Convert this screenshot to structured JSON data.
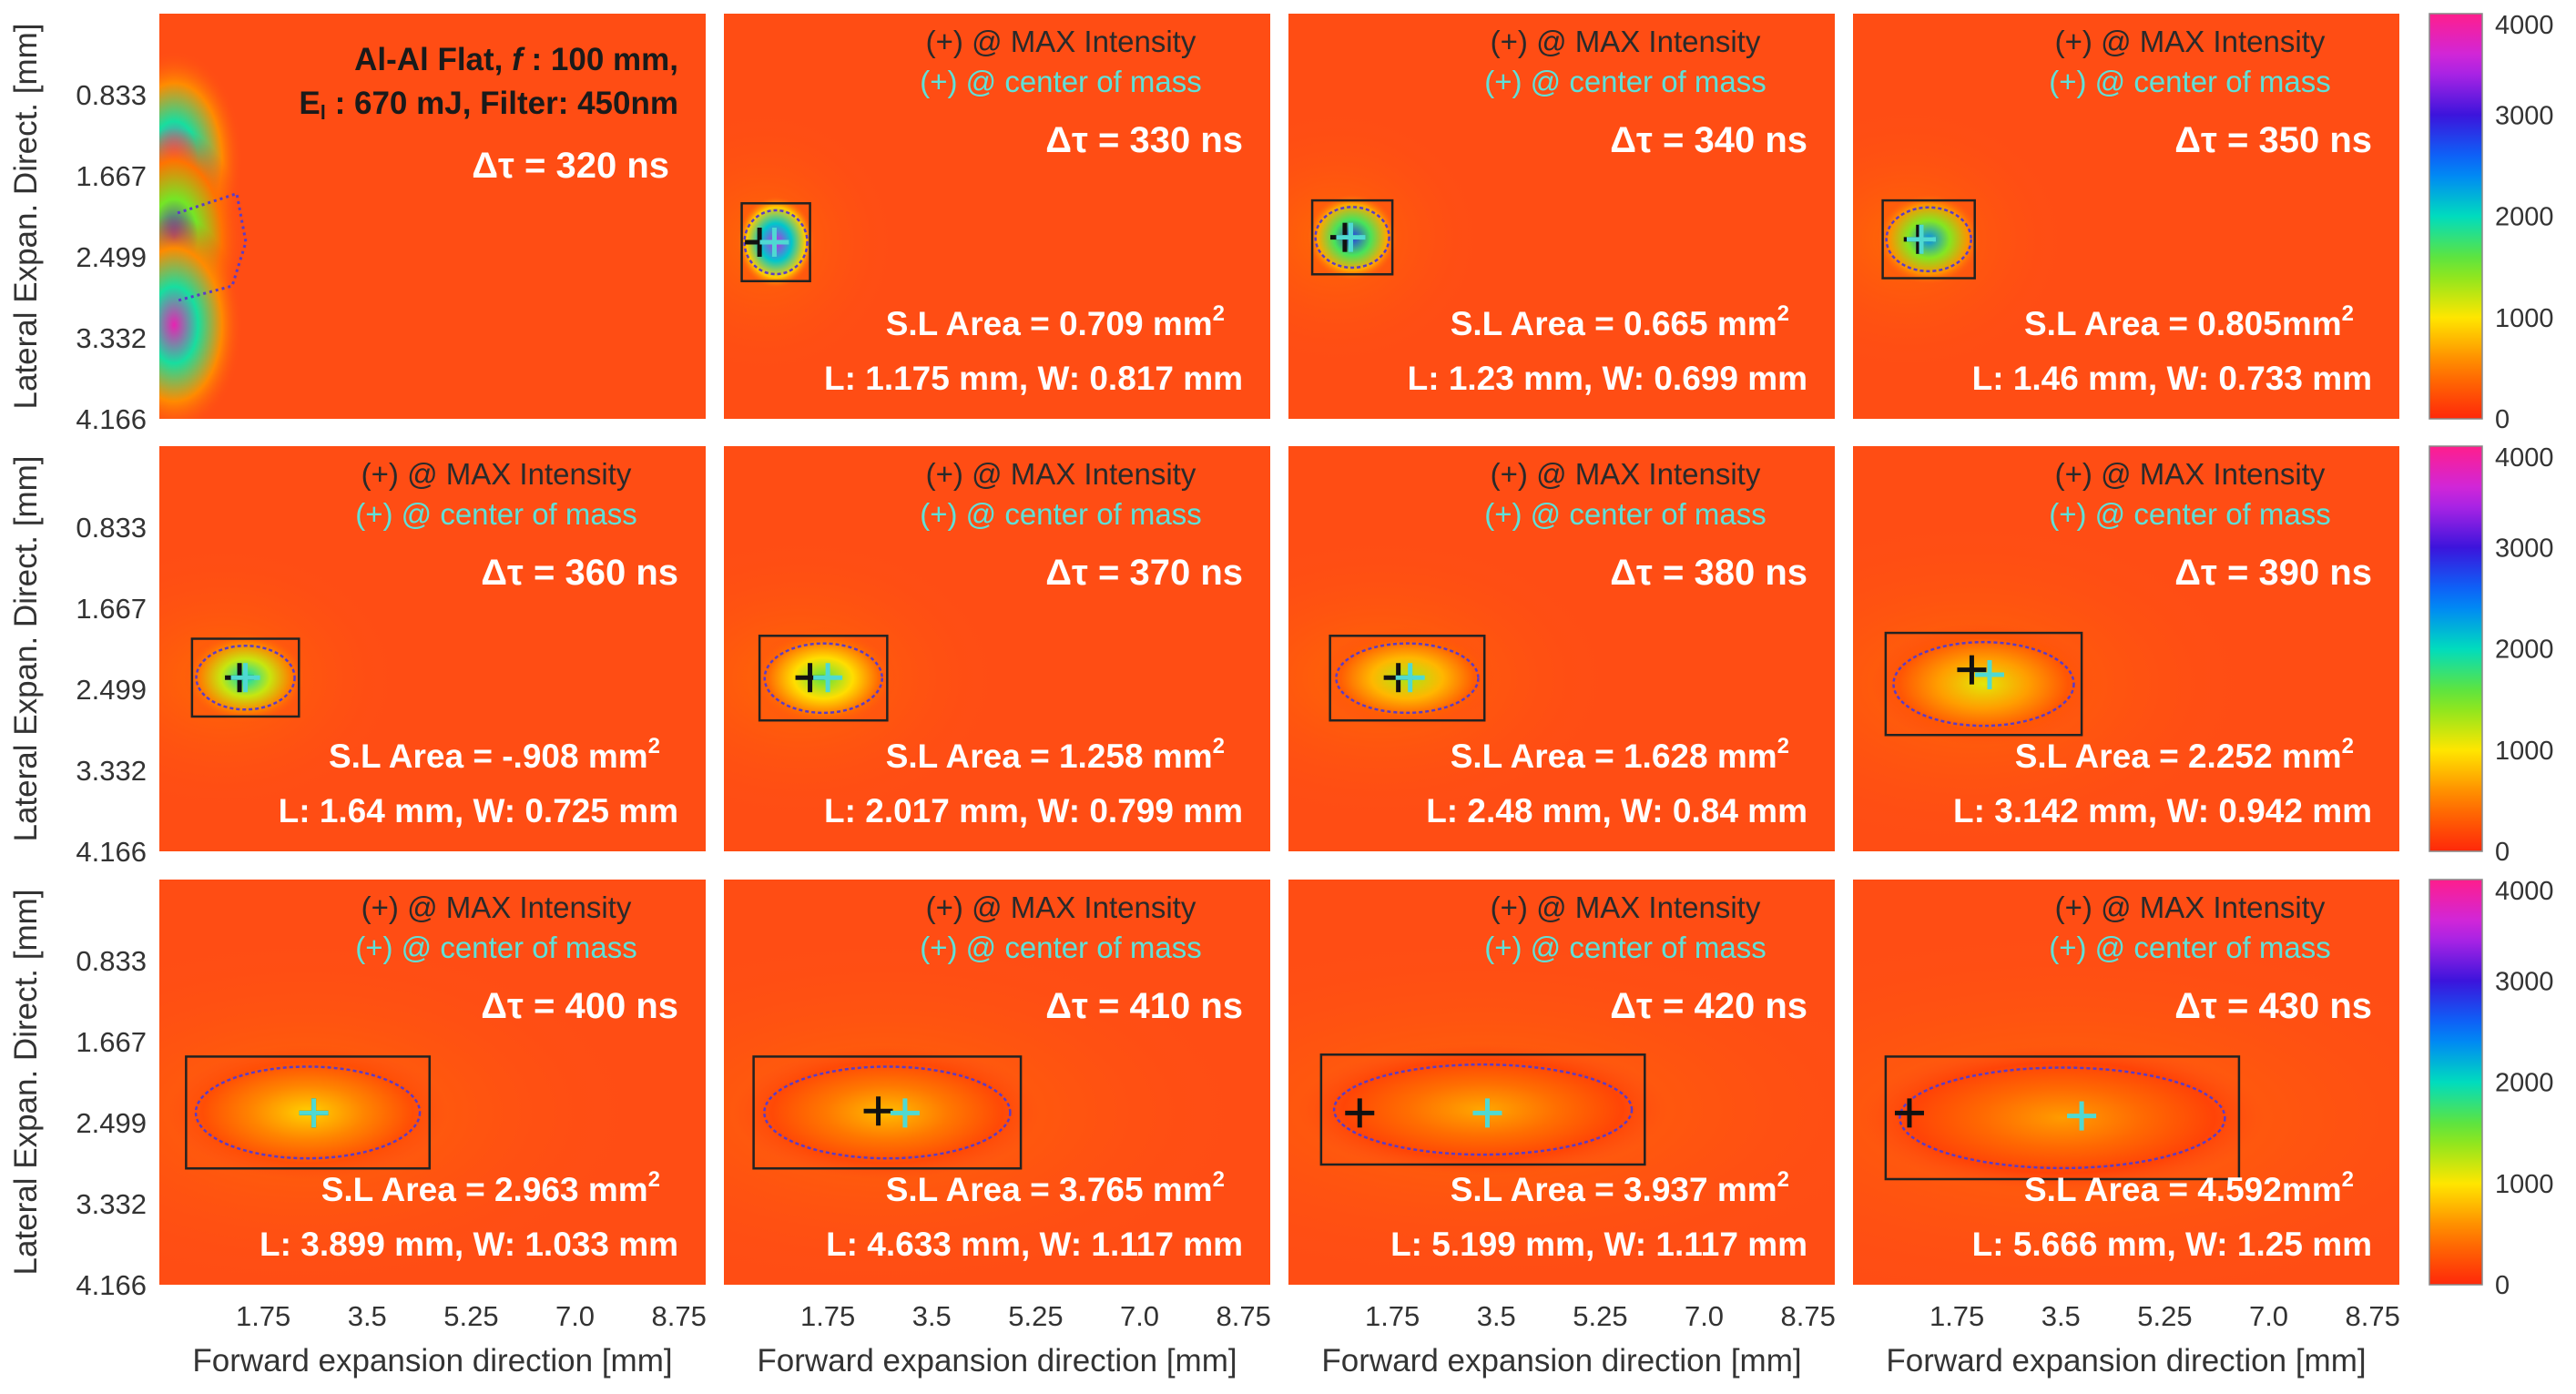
{
  "chart_data": {
    "type": "heatmap",
    "info_line1": "Al-Al Flat,",
    "info_f": "f",
    "info_f_value": ": 100 mm,",
    "info_E": "E",
    "info_E_sub": "l",
    "info_line2_rest": ": 670 mJ, Filter: 450nm",
    "xlabel": "Forward expansion direction [mm]",
    "ylabel": "Lateral Expan. Direct. [mm]",
    "x_ticks": [
      "1.75",
      "3.5",
      "5.25",
      "7.0",
      "8.75"
    ],
    "y_ticks": [
      "0.833",
      "1.667",
      "2.499",
      "3.332",
      "4.166"
    ],
    "x_range": [
      0,
      9.2
    ],
    "y_range": [
      0,
      4.166
    ],
    "colorbar_ticks": [
      "4000",
      "3000",
      "2000",
      "1000",
      "0"
    ],
    "colorbar_range": [
      0,
      4000
    ],
    "marker_max_label": "(+) @ MAX Intensity",
    "marker_com_label": "(+) @ center of mass",
    "colors": {
      "background": "#ff4d14",
      "max_marker": "#111111",
      "com_marker": "#4fd9d2",
      "contour": "#5a3cc8",
      "box": "#222222"
    },
    "panels": [
      {
        "delay": "Δτ = 320 ns",
        "area": "",
        "dims": "",
        "show_markers": false,
        "max": null,
        "com": null,
        "box": null,
        "contour": "triangle",
        "peak": 4000
      },
      {
        "delay": "Δτ = 330 ns",
        "area": "S.L Area = 0.709 mm",
        "dims": "L: 1.175 mm, W: 0.817 mm",
        "show_markers": true,
        "max": [
          0.6,
          2.35
        ],
        "com": [
          0.85,
          2.35
        ],
        "box": [
          0.3,
          1.95,
          1.45,
          2.75
        ],
        "contour": "ellipse",
        "peak": 3500
      },
      {
        "delay": "Δτ = 340 ns",
        "area": "S.L Area = 0.665 mm",
        "dims": "L: 1.23 mm, W: 0.699 mm",
        "show_markers": true,
        "max": [
          0.95,
          2.3
        ],
        "com": [
          1.05,
          2.3
        ],
        "box": [
          0.4,
          1.92,
          1.75,
          2.68
        ],
        "contour": "ellipse",
        "peak": 2800
      },
      {
        "delay": "Δτ = 350 ns",
        "area": "S.L Area = 0.805mm",
        "dims": "L: 1.46 mm, W: 0.733 mm",
        "show_markers": true,
        "max": [
          1.1,
          2.32
        ],
        "com": [
          1.15,
          2.32
        ],
        "box": [
          0.5,
          1.92,
          2.05,
          2.72
        ],
        "contour": "ellipse",
        "peak": 2400
      },
      {
        "delay": "Δτ = 360 ns",
        "area": "S.L Area = -.908 mm",
        "dims": "L: 1.64 mm, W: 0.725 mm",
        "show_markers": true,
        "max": [
          1.35,
          2.38
        ],
        "com": [
          1.45,
          2.38
        ],
        "box": [
          0.55,
          1.98,
          2.35,
          2.78
        ],
        "contour": "ellipse",
        "peak": 2000
      },
      {
        "delay": "Δτ = 370 ns",
        "area": "S.L Area = 1.258 mm",
        "dims": "L: 2.017 mm, W: 0.799 mm",
        "show_markers": true,
        "max": [
          1.45,
          2.38
        ],
        "com": [
          1.75,
          2.38
        ],
        "box": [
          0.6,
          1.95,
          2.75,
          2.82
        ],
        "contour": "ellipse",
        "peak": 1600
      },
      {
        "delay": "Δτ = 380 ns",
        "area": "S.L Area = 1.628 mm",
        "dims": "L: 2.48 mm, W: 0.84 mm",
        "show_markers": true,
        "max": [
          1.85,
          2.38
        ],
        "com": [
          2.05,
          2.38
        ],
        "box": [
          0.7,
          1.95,
          3.3,
          2.82
        ],
        "contour": "ellipse",
        "peak": 1300
      },
      {
        "delay": "Δτ = 390 ns",
        "area": "S.L Area = 2.252 mm",
        "dims": "L: 3.142 mm, W: 0.942 mm",
        "show_markers": true,
        "max": [
          2.0,
          2.3
        ],
        "com": [
          2.3,
          2.35
        ],
        "box": [
          0.55,
          1.92,
          3.85,
          2.97
        ],
        "contour": "ellipse",
        "peak": 1100
      },
      {
        "delay": "Δτ = 400 ns",
        "area": "S.L Area = 2.963 mm",
        "dims": "L: 3.899 mm, W: 1.033 mm",
        "show_markers": true,
        "max": [
          2.6,
          2.4
        ],
        "com": [
          2.6,
          2.4
        ],
        "box": [
          0.45,
          1.82,
          4.55,
          2.97
        ],
        "contour": "ellipse",
        "peak": 900
      },
      {
        "delay": "Δτ = 410 ns",
        "area": "S.L Area = 3.765 mm",
        "dims": "L: 4.633 mm, W: 1.117 mm",
        "show_markers": true,
        "max": [
          2.6,
          2.38
        ],
        "com": [
          3.05,
          2.4
        ],
        "box": [
          0.5,
          1.82,
          5.0,
          2.97
        ],
        "contour": "ellipse",
        "peak": 800
      },
      {
        "delay": "Δτ = 420 ns",
        "area": "S.L Area = 3.937 mm",
        "dims": "L: 5.199 mm, W: 1.117 mm",
        "show_markers": true,
        "max": [
          1.2,
          2.4
        ],
        "com": [
          3.35,
          2.4
        ],
        "box": [
          0.55,
          1.8,
          6.0,
          2.93
        ],
        "contour": "ellipse",
        "peak": 700
      },
      {
        "delay": "Δτ = 430 ns",
        "area": "S.L Area = 4.592mm",
        "dims": "L: 5.666 mm, W: 1.25 mm",
        "show_markers": true,
        "max": [
          0.95,
          2.4
        ],
        "com": [
          3.85,
          2.43
        ],
        "box": [
          0.55,
          1.82,
          6.5,
          3.08
        ],
        "contour": "ellipse",
        "peak": 650
      }
    ],
    "area_superscript": "2"
  }
}
